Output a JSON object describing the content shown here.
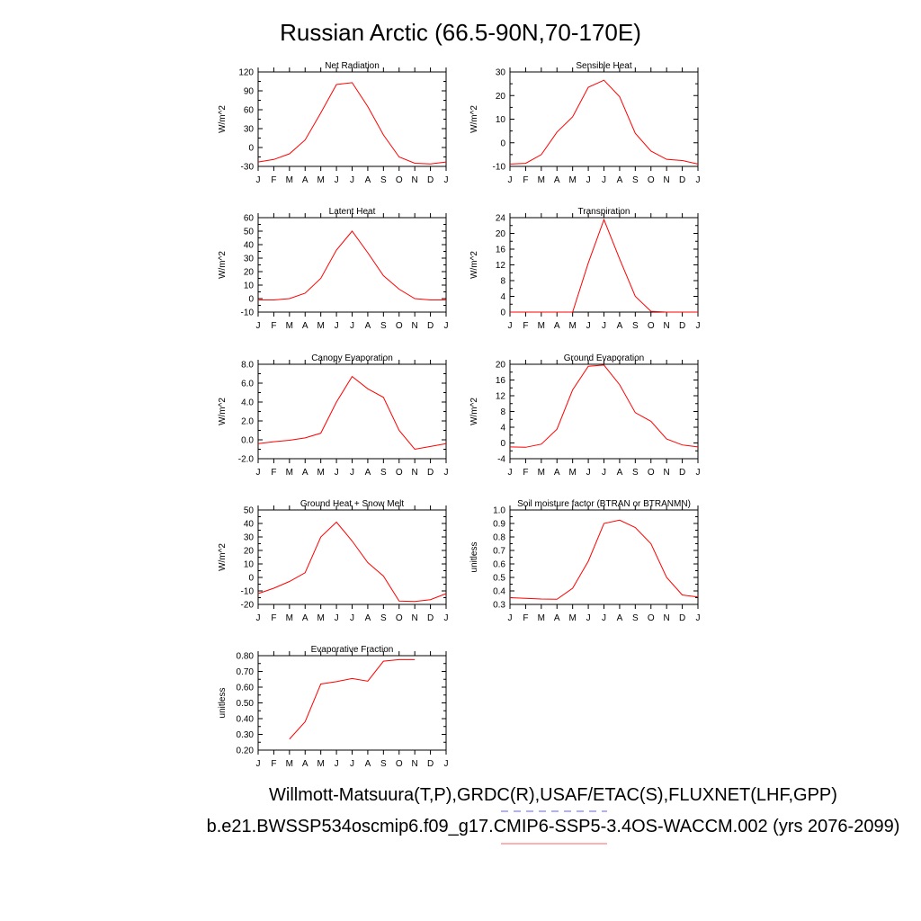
{
  "figure": {
    "title": "Russian Arctic (66.5-90N,70-170E)",
    "footer": {
      "line1": "Willmott-Matsuura(T,P),GRDC(R),USAF/ETAC(S),FLUXNET(LHF,GPP)",
      "line2": "b.e21.BWSSP534oscmip6.f09_g17.CMIP6-SSP5-3.4OS-WACCM.002 (yrs 2076-2099)",
      "obs_legend_color": "#8080ff",
      "model_legend_color": "#ff8080"
    },
    "line_color": "#ff0000"
  },
  "chart_data": [
    {
      "type": "line",
      "title": "Net Radiation",
      "ylabel": "W/m^2",
      "x": [
        "J",
        "F",
        "M",
        "A",
        "M",
        "J",
        "J",
        "A",
        "S",
        "O",
        "N",
        "D",
        "J"
      ],
      "ylim": [
        -30,
        120
      ],
      "yticks": [
        "-30",
        "0",
        "30",
        "60",
        "90",
        "120"
      ],
      "series": [
        {
          "values": [
            -23,
            -19,
            -10,
            12,
            55,
            100,
            103,
            65,
            20,
            -15,
            -25,
            -26,
            -23
          ]
        }
      ]
    },
    {
      "type": "line",
      "title": "Sensible Heat",
      "ylabel": "W/m^2",
      "x": [
        "J",
        "F",
        "M",
        "A",
        "M",
        "J",
        "J",
        "A",
        "S",
        "O",
        "N",
        "D",
        "J"
      ],
      "ylim": [
        -10,
        30
      ],
      "yticks": [
        "-10",
        "0",
        "10",
        "20",
        "30"
      ],
      "series": [
        {
          "values": [
            -9,
            -8.7,
            -5,
            4.5,
            11,
            23.5,
            26.5,
            19.5,
            4,
            -3.5,
            -7,
            -7.5,
            -9
          ]
        }
      ]
    },
    {
      "type": "line",
      "title": "Latent Heat",
      "ylabel": "W/m^2",
      "x": [
        "J",
        "F",
        "M",
        "A",
        "M",
        "J",
        "J",
        "A",
        "S",
        "O",
        "N",
        "D",
        "J"
      ],
      "ylim": [
        -10,
        60
      ],
      "yticks": [
        "-10",
        "0",
        "10",
        "20",
        "30",
        "40",
        "50",
        "60"
      ],
      "series": [
        {
          "values": [
            -1,
            -1,
            0,
            4,
            15,
            36,
            50,
            34,
            17,
            7,
            0,
            -1,
            -1
          ]
        }
      ]
    },
    {
      "type": "line",
      "title": "Transpiration",
      "ylabel": "W/m^2",
      "x": [
        "J",
        "F",
        "M",
        "A",
        "M",
        "J",
        "J",
        "A",
        "S",
        "O",
        "N",
        "D",
        "J"
      ],
      "ylim": [
        0,
        24
      ],
      "yticks": [
        "0",
        "4",
        "8",
        "12",
        "16",
        "20",
        "24"
      ],
      "series": [
        {
          "values": [
            0,
            0,
            0,
            0,
            0,
            12.5,
            23.5,
            13.5,
            4,
            0.2,
            0,
            0,
            0
          ]
        }
      ]
    },
    {
      "type": "line",
      "title": "Canopy Evaporation",
      "ylabel": "W/m^2",
      "x": [
        "J",
        "F",
        "M",
        "A",
        "M",
        "J",
        "J",
        "A",
        "S",
        "O",
        "N",
        "D",
        "J"
      ],
      "ylim": [
        -2,
        8
      ],
      "yticks": [
        "-2.0",
        "0.0",
        "2.0",
        "4.0",
        "6.0",
        "8.0"
      ],
      "series": [
        {
          "values": [
            -0.4,
            -0.2,
            -0.05,
            0.2,
            0.7,
            4.0,
            6.7,
            5.4,
            4.5,
            1.0,
            -1.0,
            -0.7,
            -0.4
          ]
        }
      ]
    },
    {
      "type": "line",
      "title": "Ground Evaporation",
      "ylabel": "W/m^2",
      "x": [
        "J",
        "F",
        "M",
        "A",
        "M",
        "J",
        "J",
        "A",
        "S",
        "O",
        "N",
        "D",
        "J"
      ],
      "ylim": [
        -4,
        20
      ],
      "yticks": [
        "-4",
        "0",
        "4",
        "8",
        "12",
        "16",
        "20"
      ],
      "series": [
        {
          "values": [
            -1,
            -1.1,
            -0.3,
            3.5,
            13.5,
            19.5,
            19.8,
            14.8,
            7.7,
            5.5,
            1,
            -0.5,
            -1
          ]
        }
      ]
    },
    {
      "type": "line",
      "title": "Ground Heat + Snow Melt",
      "ylabel": "W/m^2",
      "x": [
        "J",
        "F",
        "M",
        "A",
        "M",
        "J",
        "J",
        "A",
        "S",
        "O",
        "N",
        "D",
        "J"
      ],
      "ylim": [
        -20,
        50
      ],
      "yticks": [
        "-20",
        "-10",
        "0",
        "10",
        "20",
        "30",
        "40",
        "50"
      ],
      "series": [
        {
          "values": [
            -12,
            -8,
            -3,
            3.5,
            30,
            41,
            27,
            11,
            1,
            -17.5,
            -17.8,
            -16.5,
            -12
          ]
        }
      ]
    },
    {
      "type": "line",
      "title": "Soil moisture factor (BTRAN or BTRANMN)",
      "ylabel": "unitless",
      "x": [
        "J",
        "F",
        "M",
        "A",
        "M",
        "J",
        "J",
        "A",
        "S",
        "O",
        "N",
        "D",
        "J"
      ],
      "ylim": [
        0.3,
        1.0
      ],
      "yticks": [
        "0.3",
        "0.4",
        "0.5",
        "0.6",
        "0.7",
        "0.8",
        "0.9",
        "1.0"
      ],
      "series": [
        {
          "values": [
            0.35,
            0.345,
            0.34,
            0.338,
            0.42,
            0.62,
            0.9,
            0.925,
            0.87,
            0.75,
            0.5,
            0.37,
            0.355
          ]
        }
      ]
    },
    {
      "type": "line",
      "title": "Evaporative Fraction",
      "ylabel": "unitless",
      "x": [
        "J",
        "F",
        "M",
        "A",
        "M",
        "J",
        "J",
        "A",
        "S",
        "O",
        "N",
        "D",
        "J"
      ],
      "ylim": [
        0.2,
        0.8
      ],
      "yticks": [
        "0.20",
        "0.30",
        "0.40",
        "0.50",
        "0.60",
        "0.70",
        "0.80"
      ],
      "series": [
        {
          "values": [
            null,
            null,
            0.27,
            0.38,
            0.62,
            0.635,
            0.655,
            0.638,
            0.765,
            0.775,
            0.775,
            null,
            null
          ]
        }
      ]
    }
  ]
}
